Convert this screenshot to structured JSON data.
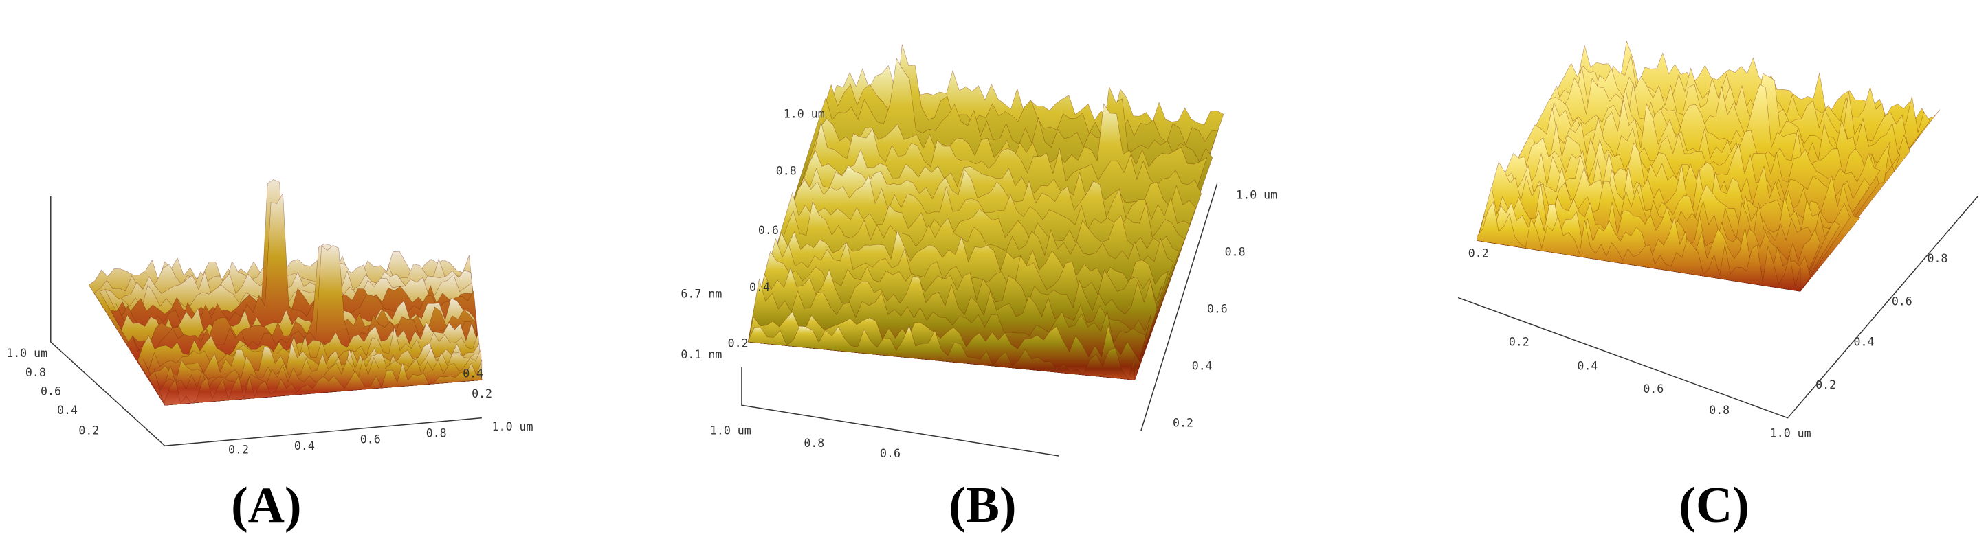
{
  "panels": [
    {
      "label": "(A)",
      "ticks": [
        "1.0 um",
        "0.8",
        "0.6",
        "0.4",
        "0.2",
        "0.2",
        "0.4",
        "0.6",
        "0.8",
        "1.0 um",
        "0.4",
        "0.2"
      ]
    },
    {
      "label": "(B)",
      "ticks": [
        "1.0 um",
        "0.8",
        "0.6",
        "0.4",
        "0.2",
        "6.7 nm",
        "0.1 nm",
        "1.0 um",
        "0.8",
        "0.6",
        "1.0 um",
        "0.8",
        "0.6",
        "0.4",
        "0.2"
      ]
    },
    {
      "label": "(C)",
      "ticks": [
        "0.2",
        "0.2",
        "0.4",
        "0.6",
        "0.8",
        "1.0 um",
        "0.2",
        "0.4",
        "0.6",
        "0.8"
      ]
    }
  ]
}
